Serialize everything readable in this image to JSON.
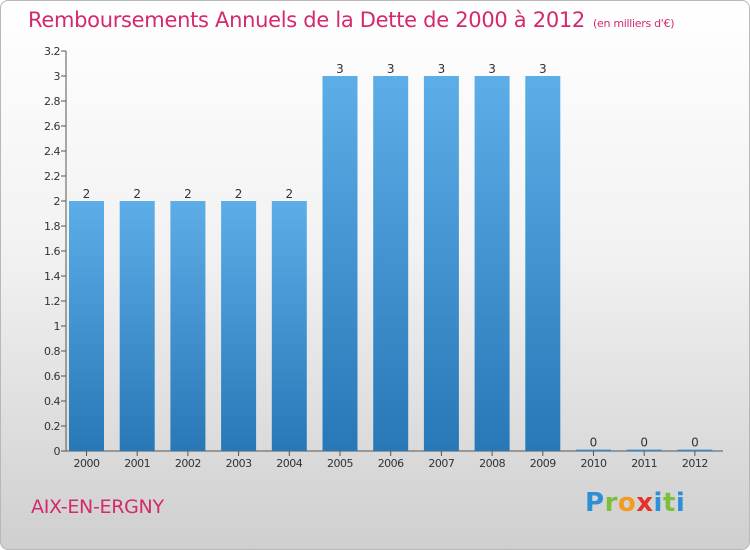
{
  "chart_data": {
    "type": "bar",
    "title": "Remboursements Annuels de la Dette de 2000 à 2012",
    "unit_note": "(en milliers d'€)",
    "categories": [
      "2000",
      "2001",
      "2002",
      "2003",
      "2004",
      "2005",
      "2006",
      "2007",
      "2008",
      "2009",
      "2010",
      "2011",
      "2012"
    ],
    "values": [
      2,
      2,
      2,
      2,
      2,
      3,
      3,
      3,
      3,
      3,
      0,
      0,
      0
    ],
    "ylim": [
      0,
      3.2
    ],
    "yticks": [
      "0",
      "0.2",
      "0.4",
      "0.6",
      "0.8",
      "1",
      "1.2",
      "1.4",
      "1.6",
      "1.8",
      "2",
      "2.2",
      "2.4",
      "2.6",
      "2.8",
      "3",
      "3.2"
    ],
    "bar_color_top": "#5dade8",
    "bar_color_bottom": "#2878b8",
    "grid": false,
    "legend": "none"
  },
  "commune": "AIX-EN-ERGNY",
  "logo": {
    "letters": [
      "P",
      "r",
      "o",
      "x",
      "i",
      "t",
      "i"
    ]
  },
  "colors": {
    "accent": "#d4286f",
    "axis": "#555555"
  }
}
